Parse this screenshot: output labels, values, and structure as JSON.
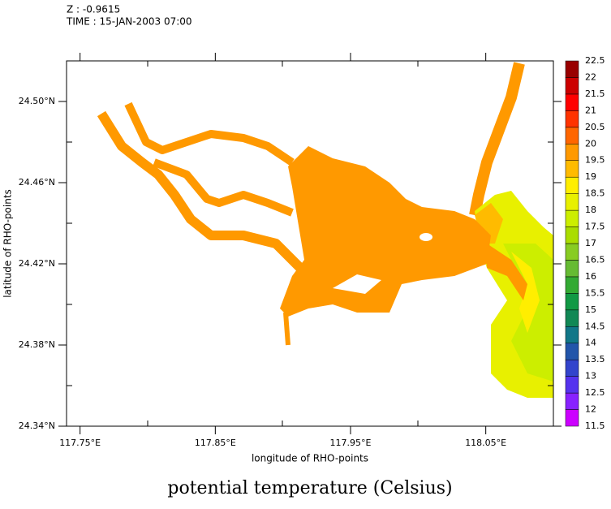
{
  "header": {
    "z": "Z : -0.9615",
    "time": "TIME : 15-JAN-2003 07:00"
  },
  "chart_data": {
    "type": "map",
    "title": "potential temperature (Celsius)",
    "x_label": "longitude of RHO-points",
    "y_label": "latitude of RHO-points",
    "xlim": [
      117.74,
      118.1
    ],
    "ylim": [
      24.34,
      24.52
    ],
    "xticks": [
      {
        "value": 117.75,
        "label": "117.75°E"
      },
      {
        "value": 117.85,
        "label": "117.85°E"
      },
      {
        "value": 117.95,
        "label": "117.95°E"
      },
      {
        "value": 118.05,
        "label": "118.05°E"
      }
    ],
    "yticks": [
      {
        "value": 24.34,
        "label": "24.34°N"
      },
      {
        "value": 24.38,
        "label": "24.38°N"
      },
      {
        "value": 24.42,
        "label": "24.42°N"
      },
      {
        "value": 24.46,
        "label": "24.46°N"
      },
      {
        "value": 24.5,
        "label": "24.50°N"
      }
    ],
    "colorbar": {
      "levels": [
        11.5,
        12,
        12.5,
        13,
        13.5,
        14,
        14.5,
        15,
        15.5,
        16,
        16.5,
        17,
        17.5,
        18,
        18.5,
        19,
        19.5,
        20,
        20.5,
        21,
        21.5,
        22,
        22.5
      ],
      "colors": [
        "#cc00ff",
        "#8822ff",
        "#5533ee",
        "#3344cc",
        "#2255aa",
        "#117788",
        "#118855",
        "#119944",
        "#33aa33",
        "#66bb33",
        "#88cc22",
        "#aadd00",
        "#ccee00",
        "#e8f000",
        "#ffee00",
        "#ffbb00",
        "#ff9900",
        "#ff6600",
        "#ff3300",
        "#ff0000",
        "#cc0000",
        "#990000"
      ]
    }
  }
}
